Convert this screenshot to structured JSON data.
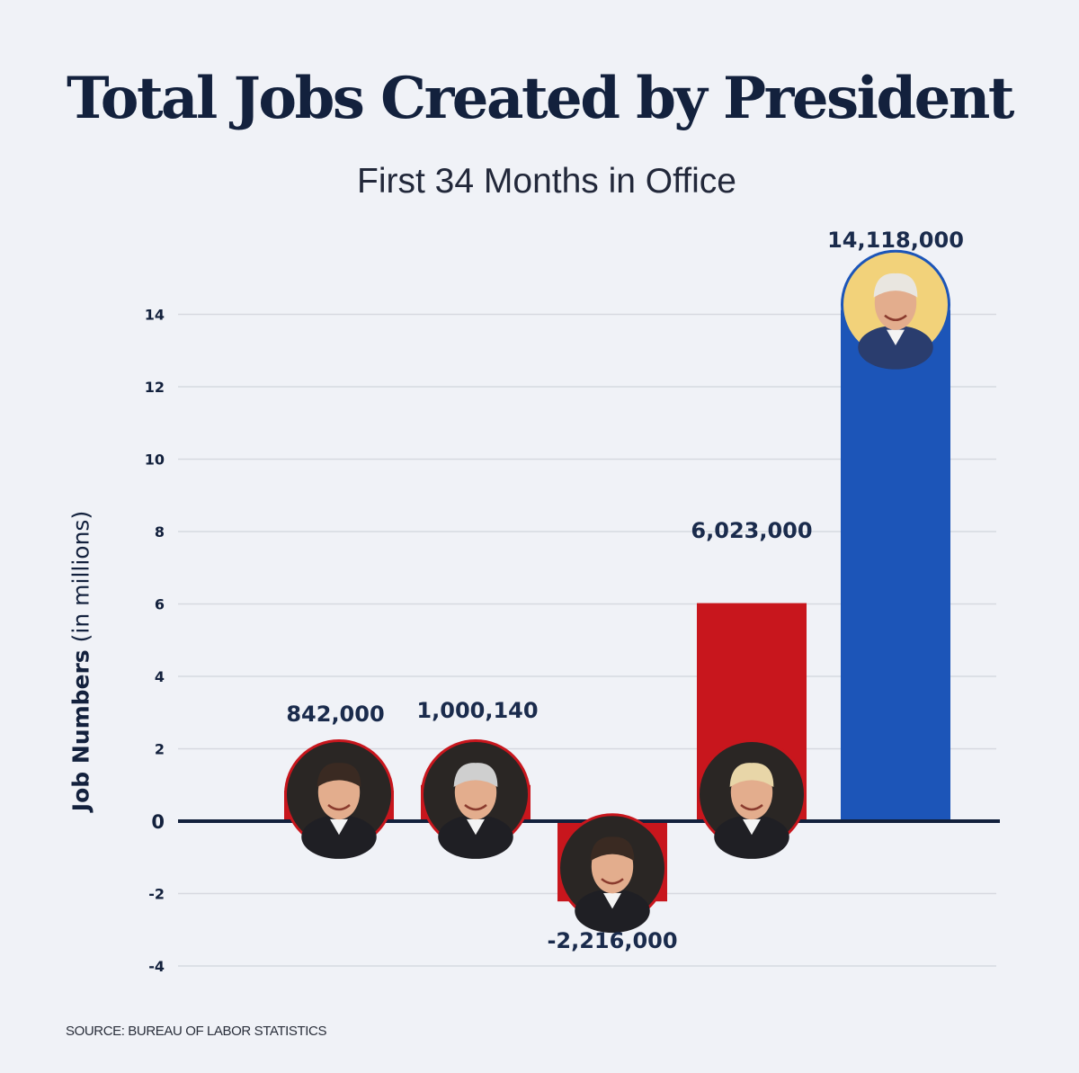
{
  "header": {
    "title": "Total Jobs Created by President",
    "subtitle": "First 34 Months in Office"
  },
  "axis": {
    "ylabel_bold": "Job Numbers",
    "ylabel_rest": "(in millions)"
  },
  "footer": {
    "source": "SOURCE: BUREAU OF LABOR STATISTICS"
  },
  "colors": {
    "background": "#f0f2f7",
    "republican_red": "#c8161d",
    "democrat_blue": "#1c55b8",
    "navy_text": "#13213d",
    "gridline": "#d6d9e0"
  },
  "chart_data": {
    "type": "bar",
    "title": "Total Jobs Created by President",
    "subtitle": "First 34 Months in Office",
    "ylabel": "Job Numbers (in millions)",
    "xlabel": "",
    "ylim": [
      -4,
      14
    ],
    "yticks": [
      "-4",
      "-2",
      "0",
      "2",
      "4",
      "6",
      "8",
      "10",
      "12",
      "14"
    ],
    "grid": true,
    "categories": [
      "",
      "",
      "",
      "",
      ""
    ],
    "values": [
      0.842,
      1.00014,
      -2.216,
      6.023,
      14.118
    ],
    "data_labels": [
      "842,000",
      "1,000,140",
      "-2,216,000",
      "6,023,000",
      "14,118,000"
    ],
    "bar_colors": [
      "#c8161d",
      "#c8161d",
      "#c8161d",
      "#c8161d",
      "#1c55b8"
    ],
    "bar_icons": [
      "portrait-icon",
      "portrait-icon",
      "portrait-icon",
      "portrait-icon",
      "portrait-icon"
    ]
  }
}
